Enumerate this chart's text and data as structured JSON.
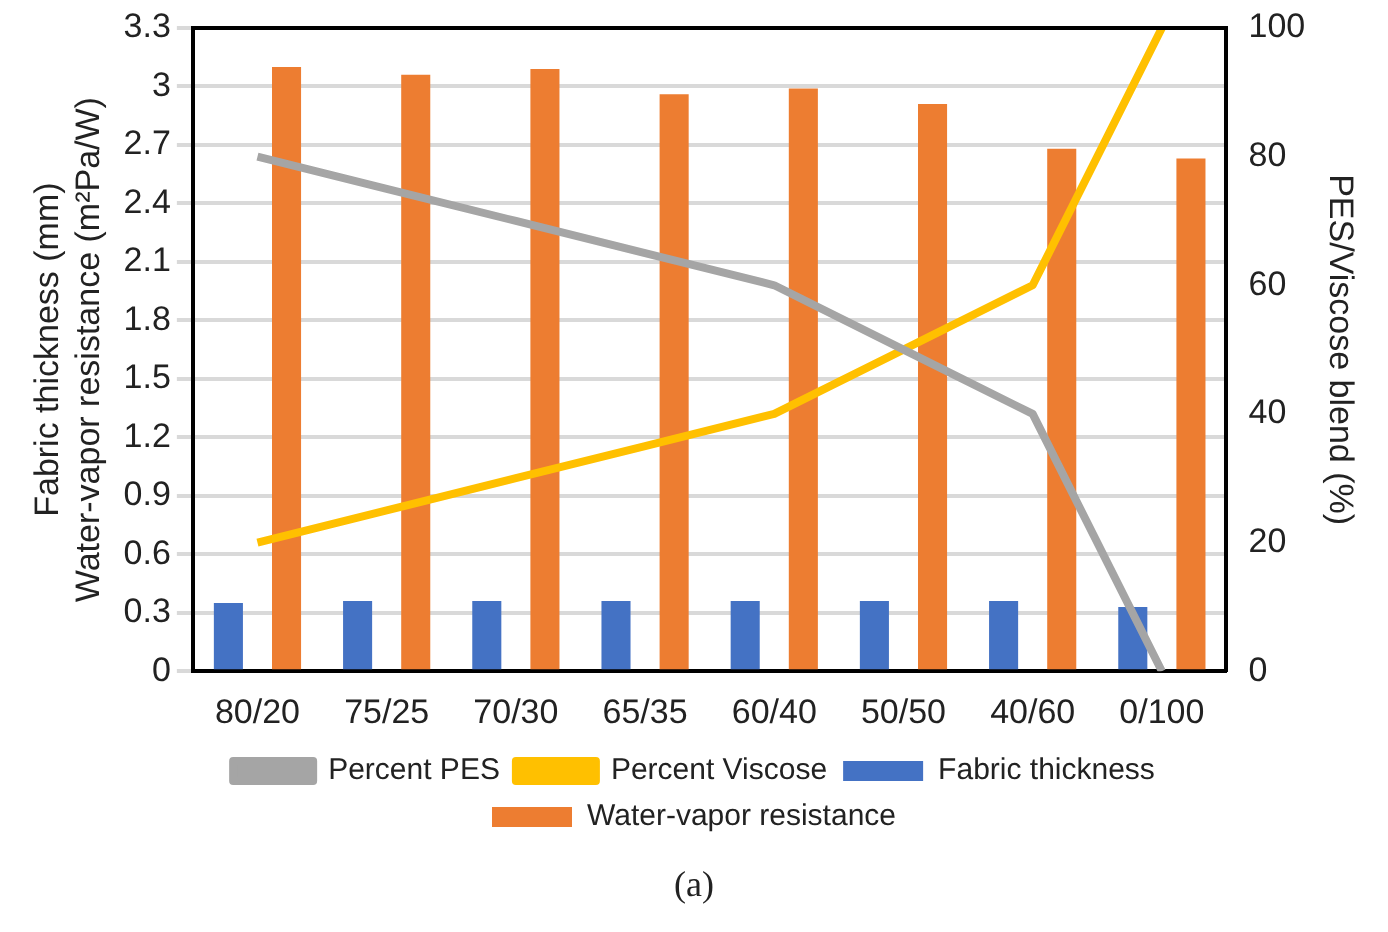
{
  "chart_data": {
    "type": "bar",
    "ylabel": "Fabric thickness (mm)\nWater-vapor resistance (m²Pa/W)",
    "y2label": "PES/Viscose blend (%)",
    "categories": [
      "80/20",
      "75/25",
      "70/30",
      "65/35",
      "60/40",
      "50/50",
      "40/60",
      "0/100"
    ],
    "series": [
      {
        "name": "Fabric thickness",
        "color": "#4472c4",
        "values": [
          0.35,
          0.36,
          0.36,
          0.36,
          0.36,
          0.36,
          0.36,
          0.33
        ]
      },
      {
        "name": "Water-vapor resistance",
        "color": "#ed7d31",
        "values": [
          3.1,
          3.06,
          3.09,
          2.96,
          2.99,
          2.91,
          2.68,
          2.63
        ]
      },
      {
        "name": "Percent PES",
        "type": "line",
        "axis": "y2",
        "color": "#a5a5a5",
        "values": [
          80,
          75,
          70,
          65,
          60,
          50,
          40,
          0
        ]
      },
      {
        "name": "Percent Viscose",
        "type": "line",
        "axis": "y2",
        "color": "#ffc000",
        "values": [
          20,
          25,
          30,
          35,
          40,
          50,
          60,
          100
        ]
      }
    ],
    "ylim": [
      0,
      3.3
    ],
    "yticks": [
      0,
      0.3,
      0.6,
      0.9,
      1.2,
      1.5,
      1.8,
      2.1,
      2.4,
      2.7,
      3,
      3.3
    ],
    "y2lim": [
      0,
      100
    ],
    "y2ticks": [
      0,
      20,
      40,
      60,
      80,
      100
    ],
    "grid": "y",
    "legend": "bottom",
    "marker": "none",
    "annotations": [
      "(a)"
    ]
  }
}
